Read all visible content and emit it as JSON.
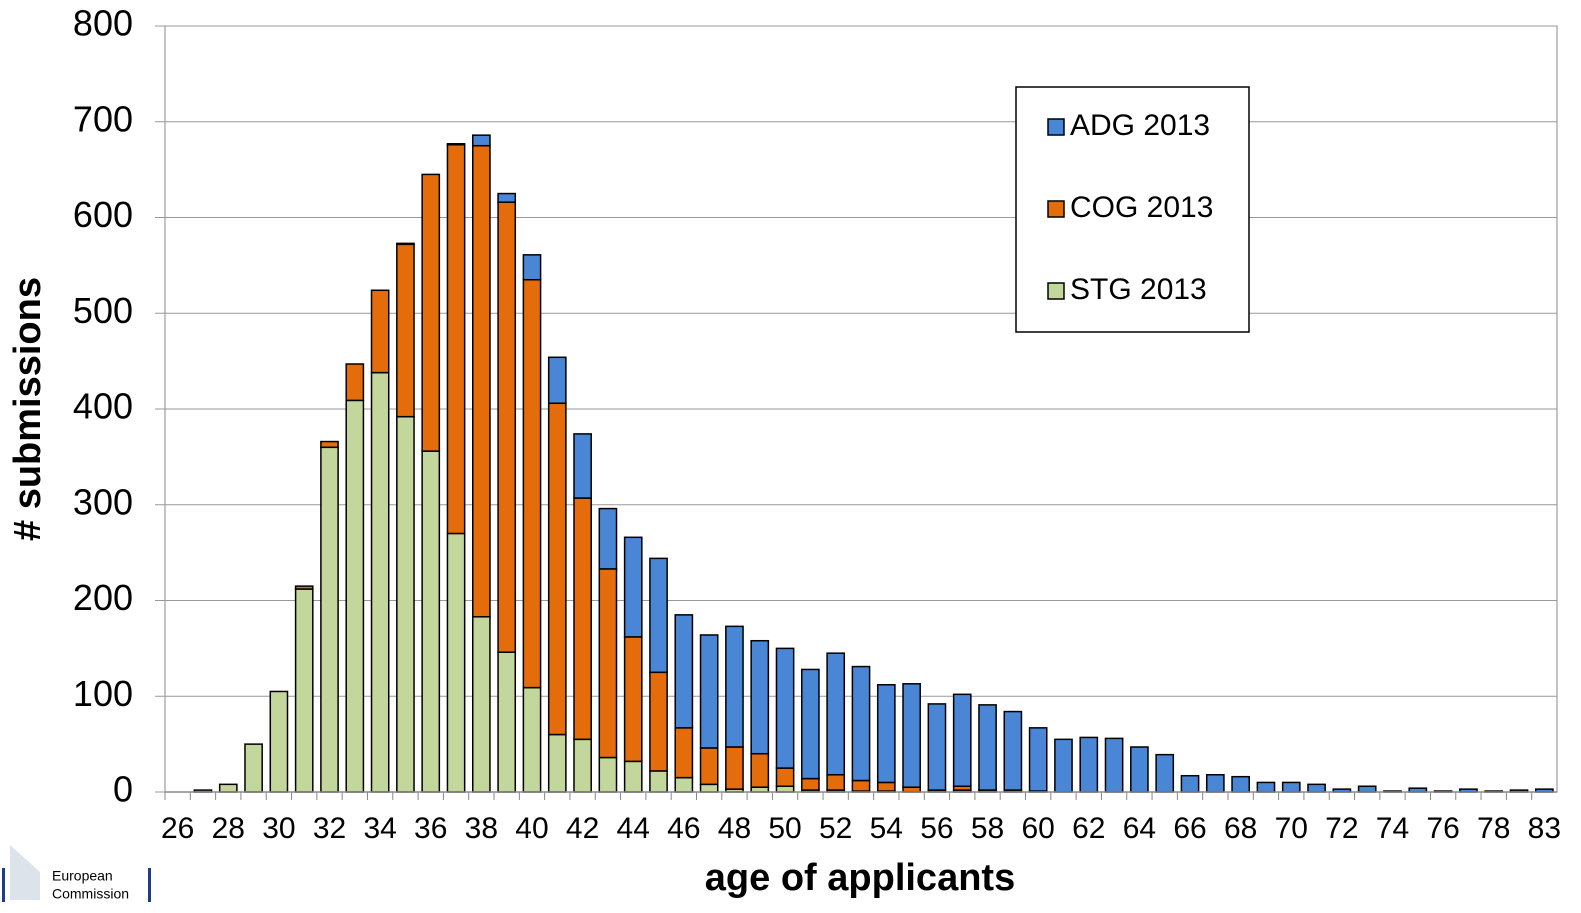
{
  "chart_data": {
    "type": "stacked_bar",
    "xlabel": "age of applicants",
    "ylabel": "# submissions",
    "categories": [
      "26",
      null,
      "28",
      null,
      "30",
      null,
      "32",
      null,
      "34",
      null,
      "36",
      null,
      "38",
      null,
      "40",
      null,
      "42",
      null,
      "44",
      null,
      "46",
      null,
      "48",
      null,
      "50",
      null,
      "52",
      null,
      "54",
      null,
      "56",
      null,
      "58",
      null,
      "60",
      null,
      "62",
      null,
      "64",
      null,
      "66",
      null,
      "68",
      null,
      "70",
      null,
      "72",
      null,
      "74",
      null,
      "76",
      null,
      "78",
      null,
      "83"
    ],
    "series": [
      {
        "name": "ADG 2013",
        "color": "#4a86d6",
        "values": [
          0,
          0,
          0,
          0,
          0,
          0,
          0,
          0,
          0,
          1,
          0,
          1,
          11,
          9,
          26,
          48,
          67,
          63,
          104,
          119,
          118,
          118,
          126,
          118,
          125,
          114,
          127,
          119,
          102,
          108,
          90,
          96,
          89,
          82,
          66,
          55,
          57,
          56,
          47,
          39,
          17,
          18,
          16,
          10,
          10,
          8,
          3,
          6,
          1,
          4,
          1,
          3,
          1,
          2,
          3
        ]
      },
      {
        "name": "COG 2013",
        "color": "#e46c0a",
        "values": [
          0,
          0,
          0,
          0,
          0,
          3,
          6,
          38,
          86,
          180,
          289,
          406,
          492,
          470,
          426,
          346,
          252,
          197,
          130,
          103,
          52,
          38,
          44,
          35,
          19,
          12,
          16,
          11,
          9,
          5,
          2,
          4,
          2,
          2,
          1,
          0,
          0,
          0,
          0,
          0,
          0,
          0,
          0,
          0,
          0,
          0,
          0,
          0,
          0,
          0,
          0,
          0,
          0,
          0,
          0
        ]
      },
      {
        "name": "STG 2013",
        "color": "#c3d69b",
        "values": [
          0,
          2,
          8,
          50,
          105,
          212,
          360,
          409,
          438,
          392,
          356,
          270,
          183,
          146,
          109,
          60,
          55,
          36,
          32,
          22,
          15,
          8,
          3,
          5,
          6,
          2,
          2,
          1,
          1,
          0,
          0,
          2,
          0,
          0,
          0,
          0,
          0,
          0,
          0,
          0,
          0,
          0,
          0,
          0,
          0,
          0,
          0,
          0,
          0,
          0,
          0,
          0,
          0,
          0,
          0
        ]
      }
    ],
    "ylim": [
      0,
      800
    ],
    "yticks": [
      0,
      100,
      200,
      300,
      400,
      500,
      600,
      700,
      800
    ],
    "grid": true,
    "legend": "upper right",
    "logo_text": [
      "European",
      "Commission"
    ]
  }
}
